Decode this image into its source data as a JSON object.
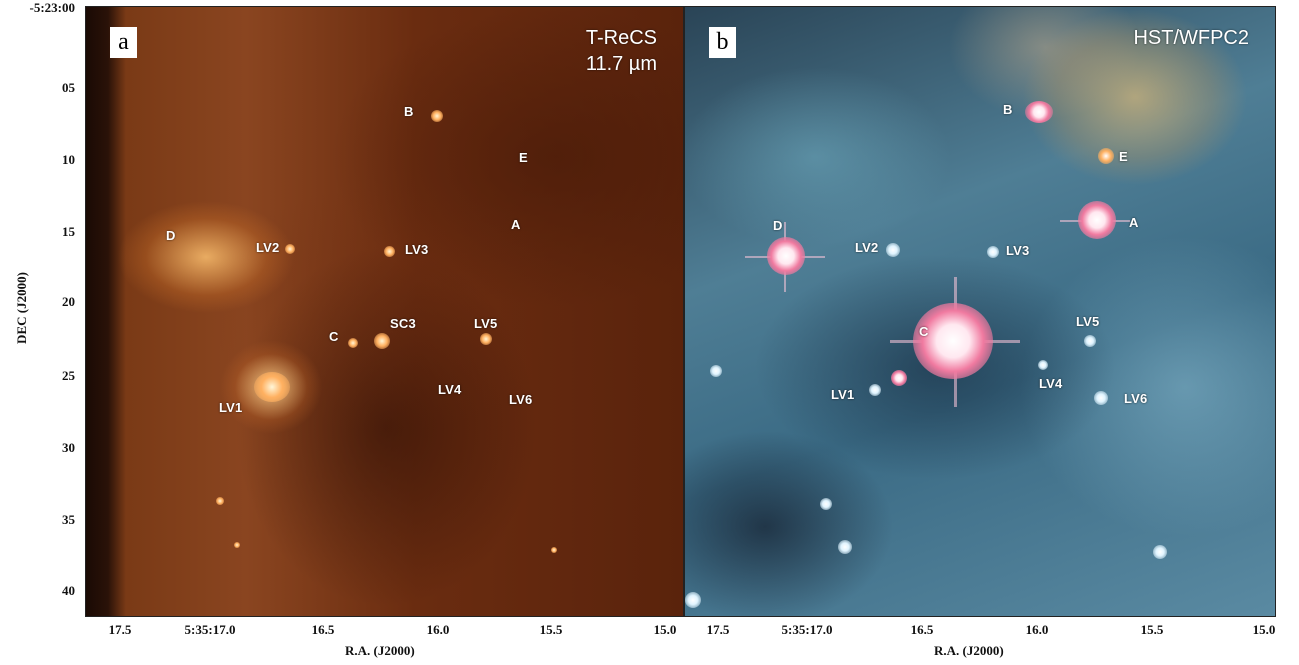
{
  "figure": {
    "panel_a": {
      "tag": "a",
      "instrument_line1": "T-ReCS",
      "instrument_line2": "11.7 µm"
    },
    "panel_b": {
      "tag": "b",
      "instrument": "HST/WFPC2"
    },
    "y_axis": {
      "title": "DEC (J2000)",
      "ticks": [
        "-5:23:00",
        "05",
        "10",
        "15",
        "20",
        "25",
        "30",
        "35",
        "40"
      ]
    },
    "x_axis": {
      "title": "R.A. (J2000)",
      "ticks_a": [
        "17.5",
        "5:35:17.0",
        "16.5",
        "16.0",
        "15.5",
        "15.0"
      ],
      "ticks_b": [
        "17.5",
        "5:35:17.0",
        "16.5",
        "16.0",
        "15.5",
        "15.0"
      ]
    },
    "labels_a": {
      "B": "B",
      "E": "E",
      "A": "A",
      "D": "D",
      "LV2": "LV2",
      "LV3": "LV3",
      "C": "C",
      "SC3": "SC3",
      "LV5": "LV5",
      "LV4": "LV4",
      "LV6": "LV6",
      "LV1": "LV1"
    },
    "labels_b": {
      "B": "B",
      "E": "E",
      "A": "A",
      "D": "D",
      "LV2": "LV2",
      "LV3": "LV3",
      "C": "C",
      "LV5": "LV5",
      "LV4": "LV4",
      "LV6": "LV6",
      "LV1": "LV1"
    }
  }
}
